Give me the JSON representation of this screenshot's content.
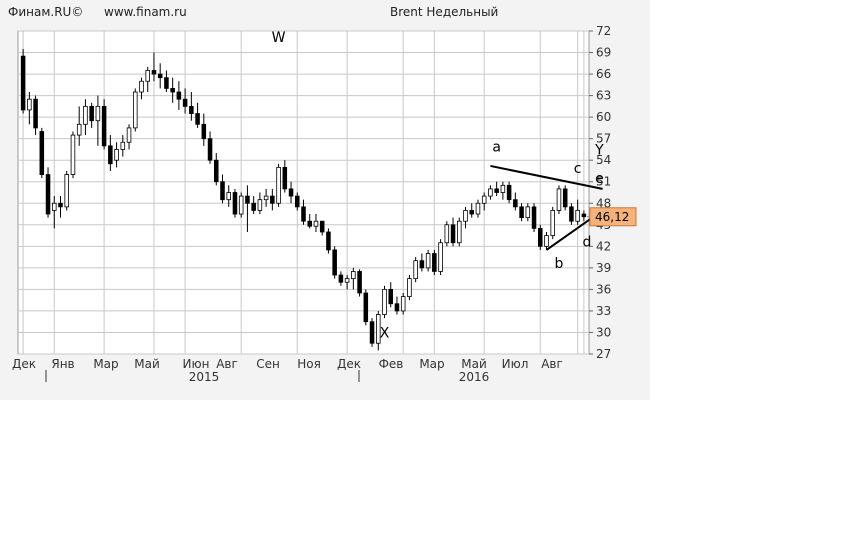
{
  "header": {
    "source_label": "Финам.RU©",
    "site_url": "www.finam.ru",
    "title": "Brent Недельный"
  },
  "chart_data": {
    "type": "candlestick",
    "title": "Brent Недельный",
    "ylim": [
      27,
      72
    ],
    "y_ticks": [
      72,
      69,
      66,
      63,
      60,
      57,
      54,
      51,
      48,
      45,
      42,
      39,
      36,
      33,
      30,
      27
    ],
    "grid": true,
    "x_ticks": [
      "Дек",
      "Янв",
      "Мар",
      "Май",
      "Июн",
      "Авг",
      "Сен",
      "Ноя",
      "Дек",
      "Фев",
      "Мар",
      "Май",
      "Июл",
      "Авг"
    ],
    "year_labels": [
      "2015",
      "2016"
    ],
    "last_price_label": "46,12",
    "last_price": 46.12,
    "colors": {
      "up": "#ffffff",
      "down": "#000000",
      "grid": "#c8c8c8",
      "price_tag": "#f5b27a"
    },
    "candles": [
      [
        68.5,
        69.5,
        60.5,
        61.0
      ],
      [
        61.0,
        63.5,
        59.0,
        62.5
      ],
      [
        62.5,
        63.0,
        57.5,
        58.5
      ],
      [
        58.0,
        58.5,
        51.5,
        52.0
      ],
      [
        52.0,
        53.0,
        46.0,
        46.5
      ],
      [
        47.0,
        49.0,
        44.5,
        48.0
      ],
      [
        48.0,
        49.0,
        46.0,
        47.5
      ],
      [
        47.5,
        52.5,
        47.0,
        52.0
      ],
      [
        52.0,
        58.0,
        51.5,
        57.5
      ],
      [
        57.5,
        61.5,
        56.0,
        59.0
      ],
      [
        59.0,
        62.5,
        57.5,
        61.5
      ],
      [
        61.5,
        62.0,
        58.5,
        59.5
      ],
      [
        59.5,
        63.0,
        56.0,
        61.5
      ],
      [
        61.5,
        62.5,
        55.5,
        56.0
      ],
      [
        56.0,
        57.5,
        52.5,
        53.5
      ],
      [
        54.0,
        56.5,
        53.0,
        55.5
      ],
      [
        55.5,
        57.5,
        54.5,
        56.5
      ],
      [
        56.5,
        59.0,
        55.5,
        58.5
      ],
      [
        58.5,
        64.0,
        58.0,
        63.5
      ],
      [
        63.5,
        65.5,
        62.5,
        65.0
      ],
      [
        65.0,
        67.0,
        63.5,
        66.5
      ],
      [
        66.5,
        69.0,
        65.0,
        66.0
      ],
      [
        66.0,
        67.5,
        64.0,
        65.5
      ],
      [
        65.5,
        66.5,
        63.5,
        64.0
      ],
      [
        64.0,
        65.5,
        62.0,
        63.5
      ],
      [
        63.5,
        65.0,
        61.0,
        62.5
      ],
      [
        62.5,
        64.0,
        60.5,
        61.5
      ],
      [
        61.5,
        63.5,
        59.5,
        60.5
      ],
      [
        60.5,
        62.0,
        58.5,
        59.0
      ],
      [
        59.0,
        60.5,
        56.0,
        57.0
      ],
      [
        57.0,
        58.0,
        53.5,
        54.0
      ],
      [
        54.0,
        55.0,
        50.5,
        51.0
      ],
      [
        51.0,
        52.0,
        48.0,
        48.5
      ],
      [
        48.5,
        50.5,
        47.5,
        49.5
      ],
      [
        49.5,
        50.0,
        46.0,
        46.5
      ],
      [
        46.5,
        49.5,
        46.0,
        49.0
      ],
      [
        49.0,
        50.5,
        44.0,
        48.0
      ],
      [
        48.0,
        49.0,
        46.5,
        47.0
      ],
      [
        47.0,
        49.5,
        46.5,
        48.5
      ],
      [
        48.5,
        50.0,
        47.5,
        49.0
      ],
      [
        49.0,
        50.0,
        47.0,
        48.0
      ],
      [
        48.0,
        53.5,
        47.5,
        53.0
      ],
      [
        53.0,
        54.0,
        49.5,
        50.0
      ],
      [
        50.0,
        51.0,
        48.0,
        49.0
      ],
      [
        49.0,
        49.5,
        47.0,
        47.5
      ],
      [
        47.5,
        48.5,
        45.0,
        45.5
      ],
      [
        45.5,
        46.5,
        44.5,
        44.8
      ],
      [
        44.8,
        46.5,
        44.0,
        45.5
      ],
      [
        45.5,
        45.5,
        43.5,
        44.0
      ],
      [
        44.0,
        44.5,
        41.0,
        41.5
      ],
      [
        41.5,
        42.0,
        37.5,
        38.0
      ],
      [
        38.0,
        38.5,
        36.5,
        37.0
      ],
      [
        37.0,
        38.0,
        36.0,
        37.5
      ],
      [
        37.5,
        39.0,
        36.0,
        38.5
      ],
      [
        38.5,
        38.8,
        35.0,
        35.5
      ],
      [
        35.5,
        36.0,
        31.0,
        31.5
      ],
      [
        31.5,
        32.0,
        28.0,
        28.5
      ],
      [
        28.5,
        33.0,
        27.5,
        32.5
      ],
      [
        32.5,
        36.5,
        32.0,
        36.0
      ],
      [
        36.0,
        37.0,
        33.5,
        34.0
      ],
      [
        34.0,
        35.0,
        32.5,
        33.0
      ],
      [
        33.0,
        35.5,
        32.5,
        35.0
      ],
      [
        35.0,
        38.0,
        34.5,
        37.5
      ],
      [
        37.5,
        40.5,
        37.0,
        40.0
      ],
      [
        40.0,
        41.0,
        38.5,
        39.0
      ],
      [
        39.0,
        41.5,
        38.5,
        41.0
      ],
      [
        41.0,
        41.5,
        38.0,
        38.5
      ],
      [
        38.5,
        43.0,
        38.0,
        42.5
      ],
      [
        42.5,
        45.5,
        42.0,
        45.0
      ],
      [
        45.0,
        46.0,
        42.0,
        42.5
      ],
      [
        42.5,
        46.0,
        42.0,
        45.5
      ],
      [
        45.5,
        47.5,
        44.5,
        47.0
      ],
      [
        47.0,
        48.0,
        46.0,
        46.5
      ],
      [
        46.5,
        48.5,
        46.0,
        48.0
      ],
      [
        48.0,
        49.5,
        47.0,
        49.0
      ],
      [
        49.0,
        50.5,
        48.5,
        50.0
      ],
      [
        50.0,
        51.0,
        49.0,
        49.5
      ],
      [
        49.5,
        51.0,
        48.5,
        50.5
      ],
      [
        50.5,
        51.0,
        48.0,
        48.5
      ],
      [
        48.5,
        49.5,
        47.0,
        47.5
      ],
      [
        47.5,
        48.0,
        45.5,
        46.0
      ],
      [
        46.0,
        48.0,
        45.5,
        47.5
      ],
      [
        47.5,
        48.0,
        44.0,
        44.5
      ],
      [
        44.5,
        45.0,
        41.5,
        42.0
      ],
      [
        42.0,
        44.0,
        41.5,
        43.5
      ],
      [
        43.5,
        47.5,
        43.0,
        47.0
      ],
      [
        47.0,
        50.5,
        46.5,
        50.0
      ],
      [
        50.0,
        50.5,
        47.0,
        47.5
      ],
      [
        47.5,
        48.0,
        45.0,
        45.5
      ],
      [
        45.5,
        48.5,
        45.0,
        47.0
      ],
      [
        46.5,
        47.0,
        45.5,
        46.12
      ]
    ],
    "annotations": [
      {
        "text": "W",
        "x": 41,
        "y": 70.5
      },
      {
        "text": "X",
        "x": 58,
        "y": 29.3
      },
      {
        "text": "a",
        "x": 76,
        "y": 55.2
      },
      {
        "text": "b",
        "x": 86,
        "y": 39.0
      },
      {
        "text": "c",
        "x": 89,
        "y": 52.2
      },
      {
        "text": "d",
        "x": 90.5,
        "y": 42.0
      },
      {
        "text": "e",
        "x": 92.5,
        "y": 50.8
      },
      {
        "text": "Y",
        "x": 92.5,
        "y": 54.8
      }
    ],
    "trendlines": [
      {
        "x1": 75,
        "y1": 53.2,
        "x2": 93,
        "y2": 50.0
      },
      {
        "x1": 84,
        "y1": 41.5,
        "x2": 93,
        "y2": 47.0
      }
    ]
  }
}
